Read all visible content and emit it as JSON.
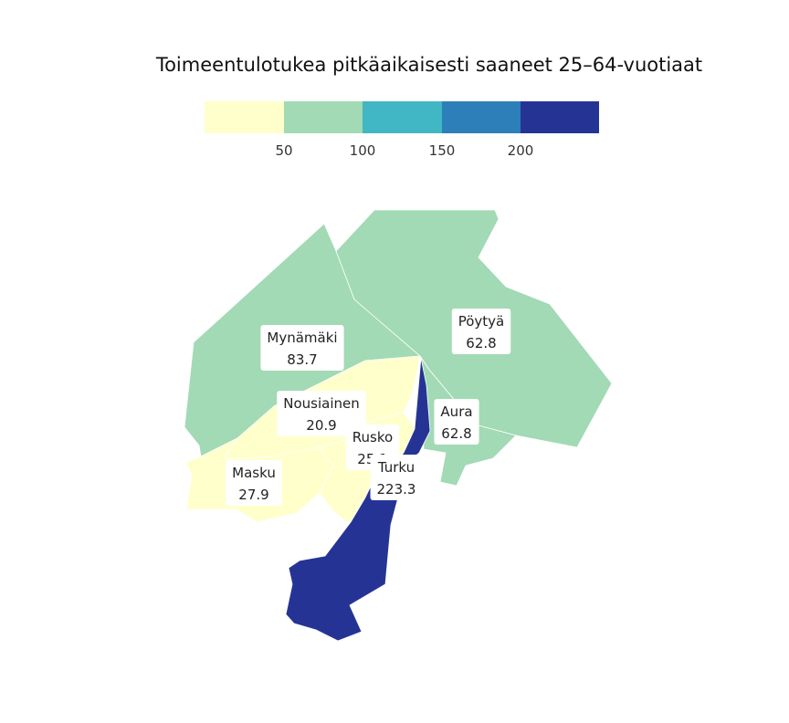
{
  "title": "Toimeentulotukea pitkäaikaisesti saaneet 25–64-vuotiaat",
  "legend": {
    "colors": [
      "#ffffcc",
      "#a1dab4",
      "#41b6c4",
      "#2c7fb8",
      "#253494"
    ],
    "ticks": [
      "50",
      "100",
      "150",
      "200"
    ],
    "breaks": [
      50,
      100,
      150,
      200
    ]
  },
  "regions": [
    {
      "name": "Mynämäki",
      "value": "83.7"
    },
    {
      "name": "Pöytyä",
      "value": "62.8"
    },
    {
      "name": "Aura",
      "value": "62.8"
    },
    {
      "name": "Nousiainen",
      "value": "20.9"
    },
    {
      "name": "Masku",
      "value": "27.9"
    },
    {
      "name": "Rusko",
      "value": "25.1"
    },
    {
      "name": "Turku",
      "value": "223.3"
    }
  ],
  "colors": {
    "region_border": "#ffffff",
    "label_background": "#ffffff",
    "text": "#222222"
  }
}
